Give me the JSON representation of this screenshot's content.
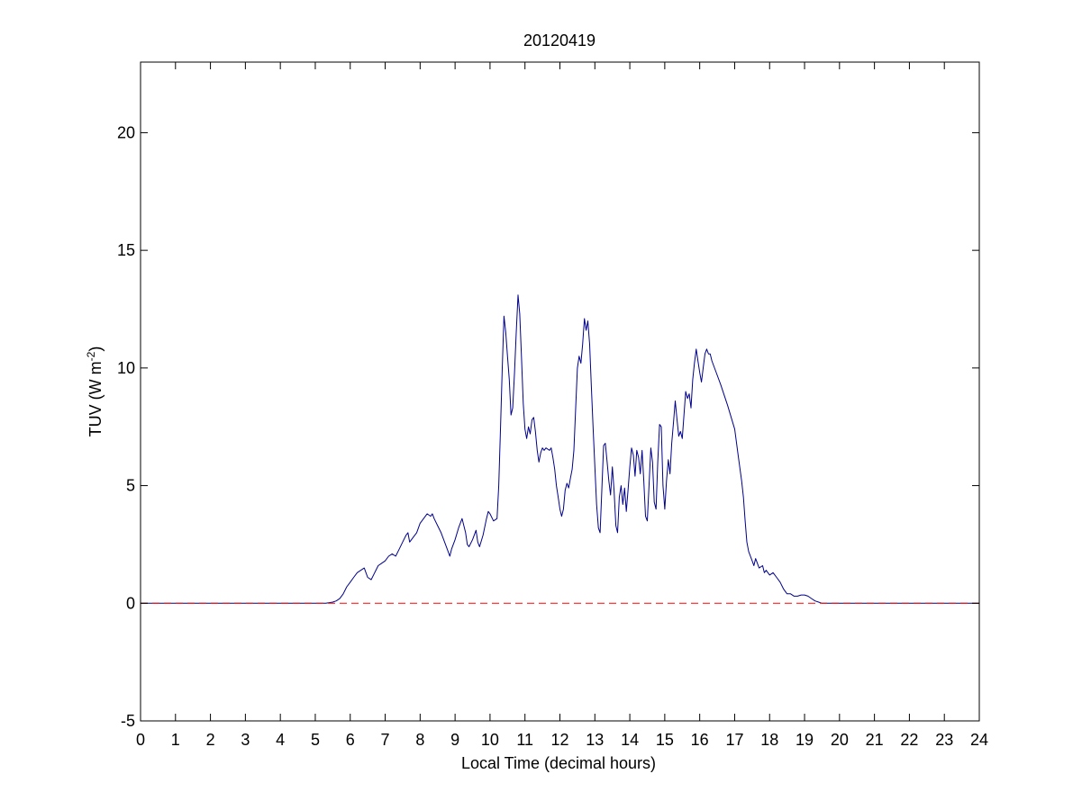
{
  "chart_data": {
    "type": "line",
    "title": "20120419",
    "xlabel": "Local Time (decimal hours)",
    "ylabel": "TUV (W m-2)",
    "xlim": [
      0,
      24
    ],
    "ylim": [
      -5,
      23
    ],
    "xticks": [
      0,
      1,
      2,
      3,
      4,
      5,
      6,
      7,
      8,
      9,
      10,
      11,
      12,
      13,
      14,
      15,
      16,
      17,
      18,
      19,
      20,
      21,
      22,
      23,
      24
    ],
    "yticks": [
      -5,
      0,
      5,
      10,
      15,
      20
    ],
    "grid": false,
    "series": [
      {
        "color": "#00008b",
        "style": "solid",
        "points": [
          [
            0,
            0
          ],
          [
            5.3,
            0
          ],
          [
            5.5,
            0.05
          ],
          [
            5.6,
            0.1
          ],
          [
            5.7,
            0.2
          ],
          [
            5.8,
            0.4
          ],
          [
            5.9,
            0.7
          ],
          [
            6.0,
            0.9
          ],
          [
            6.1,
            1.1
          ],
          [
            6.2,
            1.3
          ],
          [
            6.3,
            1.4
          ],
          [
            6.4,
            1.5
          ],
          [
            6.45,
            1.3
          ],
          [
            6.5,
            1.1
          ],
          [
            6.6,
            1.0
          ],
          [
            6.7,
            1.3
          ],
          [
            6.8,
            1.6
          ],
          [
            6.9,
            1.7
          ],
          [
            7.0,
            1.8
          ],
          [
            7.1,
            2.0
          ],
          [
            7.2,
            2.1
          ],
          [
            7.3,
            2.0
          ],
          [
            7.4,
            2.3
          ],
          [
            7.5,
            2.6
          ],
          [
            7.6,
            2.9
          ],
          [
            7.65,
            3.0
          ],
          [
            7.7,
            2.6
          ],
          [
            7.8,
            2.8
          ],
          [
            7.9,
            3.0
          ],
          [
            8.0,
            3.4
          ],
          [
            8.1,
            3.6
          ],
          [
            8.2,
            3.8
          ],
          [
            8.3,
            3.7
          ],
          [
            8.35,
            3.8
          ],
          [
            8.4,
            3.6
          ],
          [
            8.5,
            3.3
          ],
          [
            8.6,
            3.0
          ],
          [
            8.7,
            2.6
          ],
          [
            8.8,
            2.2
          ],
          [
            8.85,
            2.0
          ],
          [
            8.9,
            2.3
          ],
          [
            9.0,
            2.7
          ],
          [
            9.1,
            3.2
          ],
          [
            9.2,
            3.6
          ],
          [
            9.3,
            3.0
          ],
          [
            9.35,
            2.5
          ],
          [
            9.4,
            2.4
          ],
          [
            9.5,
            2.7
          ],
          [
            9.6,
            3.1
          ],
          [
            9.65,
            2.6
          ],
          [
            9.7,
            2.4
          ],
          [
            9.8,
            2.9
          ],
          [
            9.9,
            3.6
          ],
          [
            9.95,
            3.9
          ],
          [
            10.0,
            3.8
          ],
          [
            10.1,
            3.5
          ],
          [
            10.2,
            3.6
          ],
          [
            10.25,
            5.0
          ],
          [
            10.3,
            7.5
          ],
          [
            10.35,
            10.0
          ],
          [
            10.4,
            12.2
          ],
          [
            10.45,
            11.5
          ],
          [
            10.5,
            10.5
          ],
          [
            10.55,
            9.5
          ],
          [
            10.6,
            8.0
          ],
          [
            10.65,
            8.3
          ],
          [
            10.7,
            9.8
          ],
          [
            10.75,
            11.5
          ],
          [
            10.8,
            13.1
          ],
          [
            10.85,
            12.3
          ],
          [
            10.9,
            10.5
          ],
          [
            10.95,
            8.5
          ],
          [
            11.0,
            7.4
          ],
          [
            11.05,
            7.0
          ],
          [
            11.1,
            7.5
          ],
          [
            11.15,
            7.2
          ],
          [
            11.2,
            7.8
          ],
          [
            11.25,
            7.9
          ],
          [
            11.3,
            7.3
          ],
          [
            11.35,
            6.5
          ],
          [
            11.4,
            6.0
          ],
          [
            11.45,
            6.4
          ],
          [
            11.5,
            6.6
          ],
          [
            11.55,
            6.5
          ],
          [
            11.6,
            6.6
          ],
          [
            11.7,
            6.5
          ],
          [
            11.75,
            6.6
          ],
          [
            11.8,
            6.2
          ],
          [
            11.85,
            5.7
          ],
          [
            11.9,
            5.0
          ],
          [
            11.95,
            4.5
          ],
          [
            12.0,
            4.0
          ],
          [
            12.05,
            3.7
          ],
          [
            12.1,
            4.0
          ],
          [
            12.15,
            4.8
          ],
          [
            12.2,
            5.1
          ],
          [
            12.25,
            4.9
          ],
          [
            12.3,
            5.3
          ],
          [
            12.35,
            5.7
          ],
          [
            12.4,
            6.5
          ],
          [
            12.45,
            8.3
          ],
          [
            12.5,
            10.0
          ],
          [
            12.55,
            10.5
          ],
          [
            12.6,
            10.2
          ],
          [
            12.65,
            11.0
          ],
          [
            12.7,
            12.1
          ],
          [
            12.75,
            11.6
          ],
          [
            12.8,
            12.0
          ],
          [
            12.85,
            11.0
          ],
          [
            12.9,
            9.2
          ],
          [
            12.95,
            7.4
          ],
          [
            13.0,
            5.8
          ],
          [
            13.05,
            4.2
          ],
          [
            13.1,
            3.2
          ],
          [
            13.15,
            3.0
          ],
          [
            13.2,
            4.8
          ],
          [
            13.25,
            6.7
          ],
          [
            13.3,
            6.8
          ],
          [
            13.35,
            6.0
          ],
          [
            13.4,
            5.2
          ],
          [
            13.45,
            4.6
          ],
          [
            13.5,
            5.8
          ],
          [
            13.55,
            4.8
          ],
          [
            13.6,
            3.3
          ],
          [
            13.65,
            3.0
          ],
          [
            13.7,
            4.5
          ],
          [
            13.75,
            5.0
          ],
          [
            13.8,
            4.2
          ],
          [
            13.85,
            4.9
          ],
          [
            13.9,
            3.9
          ],
          [
            13.95,
            4.8
          ],
          [
            14.0,
            5.8
          ],
          [
            14.05,
            6.6
          ],
          [
            14.1,
            6.3
          ],
          [
            14.15,
            5.4
          ],
          [
            14.2,
            6.5
          ],
          [
            14.25,
            6.2
          ],
          [
            14.3,
            5.5
          ],
          [
            14.35,
            6.5
          ],
          [
            14.4,
            5.2
          ],
          [
            14.45,
            3.7
          ],
          [
            14.5,
            3.5
          ],
          [
            14.55,
            5.0
          ],
          [
            14.6,
            6.6
          ],
          [
            14.65,
            6.0
          ],
          [
            14.7,
            4.3
          ],
          [
            14.75,
            4.0
          ],
          [
            14.8,
            6.0
          ],
          [
            14.85,
            7.6
          ],
          [
            14.9,
            7.5
          ],
          [
            14.95,
            5.0
          ],
          [
            15.0,
            4.0
          ],
          [
            15.05,
            5.2
          ],
          [
            15.1,
            6.1
          ],
          [
            15.15,
            5.5
          ],
          [
            15.2,
            6.8
          ],
          [
            15.25,
            7.7
          ],
          [
            15.3,
            8.6
          ],
          [
            15.35,
            7.8
          ],
          [
            15.4,
            7.1
          ],
          [
            15.45,
            7.3
          ],
          [
            15.5,
            7.0
          ],
          [
            15.55,
            8.0
          ],
          [
            15.6,
            9.0
          ],
          [
            15.65,
            8.7
          ],
          [
            15.7,
            8.9
          ],
          [
            15.75,
            8.3
          ],
          [
            15.8,
            9.5
          ],
          [
            15.85,
            10.2
          ],
          [
            15.9,
            10.8
          ],
          [
            15.95,
            10.3
          ],
          [
            16.0,
            9.8
          ],
          [
            16.05,
            9.4
          ],
          [
            16.1,
            10.0
          ],
          [
            16.15,
            10.6
          ],
          [
            16.2,
            10.8
          ],
          [
            16.25,
            10.6
          ],
          [
            16.3,
            10.6
          ],
          [
            16.35,
            10.3
          ],
          [
            16.45,
            9.9
          ],
          [
            16.6,
            9.3
          ],
          [
            16.8,
            8.4
          ],
          [
            17.0,
            7.4
          ],
          [
            17.1,
            6.3
          ],
          [
            17.2,
            5.2
          ],
          [
            17.25,
            4.5
          ],
          [
            17.3,
            3.5
          ],
          [
            17.35,
            2.6
          ],
          [
            17.4,
            2.2
          ],
          [
            17.5,
            1.8
          ],
          [
            17.55,
            1.6
          ],
          [
            17.6,
            1.9
          ],
          [
            17.7,
            1.5
          ],
          [
            17.8,
            1.6
          ],
          [
            17.85,
            1.3
          ],
          [
            17.9,
            1.4
          ],
          [
            18.0,
            1.2
          ],
          [
            18.1,
            1.3
          ],
          [
            18.2,
            1.1
          ],
          [
            18.3,
            0.9
          ],
          [
            18.4,
            0.6
          ],
          [
            18.5,
            0.4
          ],
          [
            18.6,
            0.4
          ],
          [
            18.7,
            0.3
          ],
          [
            18.8,
            0.3
          ],
          [
            18.9,
            0.35
          ],
          [
            19.0,
            0.35
          ],
          [
            19.1,
            0.3
          ],
          [
            19.2,
            0.2
          ],
          [
            19.3,
            0.1
          ],
          [
            19.4,
            0.05
          ],
          [
            19.5,
            0
          ],
          [
            24,
            0
          ]
        ]
      },
      {
        "color": "#ff0000",
        "style": "dashed",
        "points": [
          [
            0,
            0
          ],
          [
            24,
            0
          ]
        ]
      }
    ]
  }
}
